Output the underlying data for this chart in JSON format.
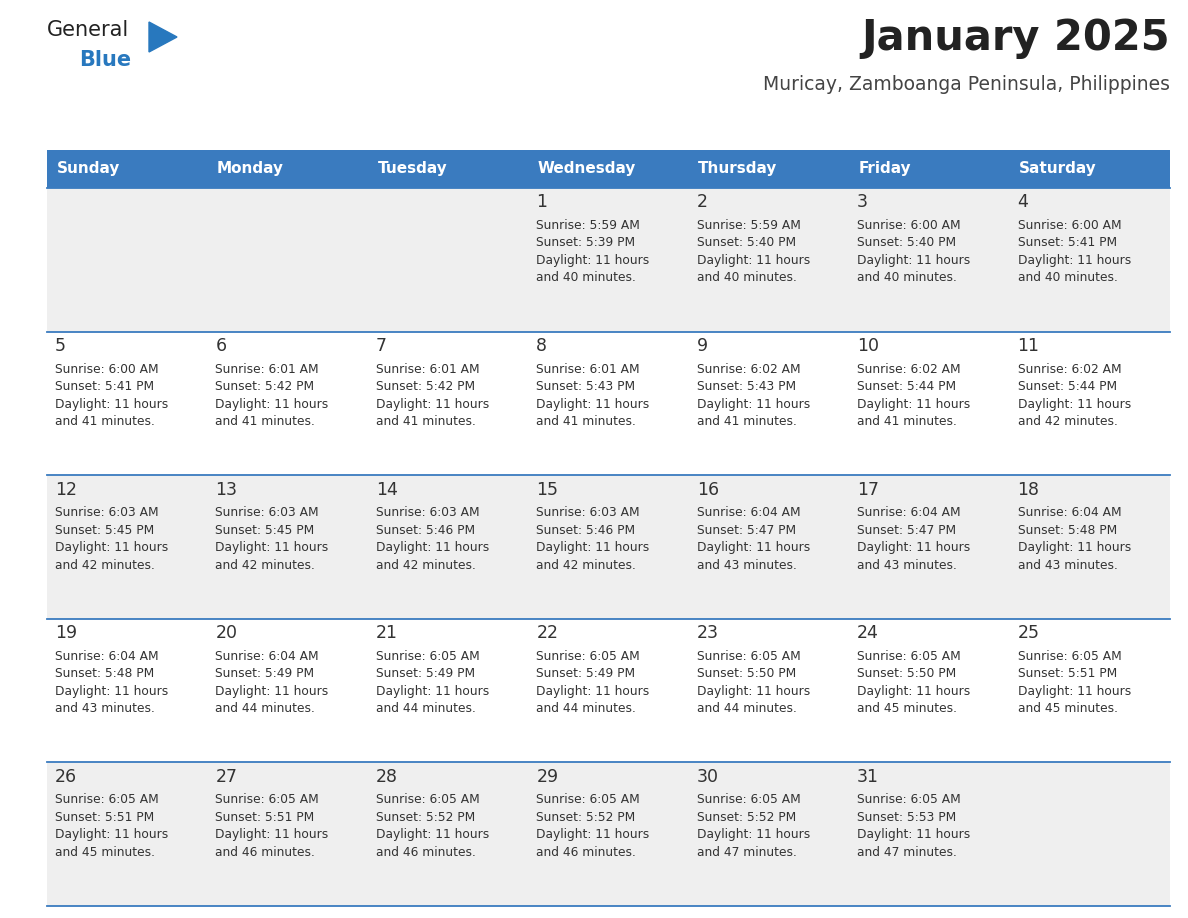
{
  "title": "January 2025",
  "subtitle": "Muricay, Zamboanga Peninsula, Philippines",
  "days_of_week": [
    "Sunday",
    "Monday",
    "Tuesday",
    "Wednesday",
    "Thursday",
    "Friday",
    "Saturday"
  ],
  "header_bg": "#3a7bbf",
  "header_text": "#ffffff",
  "row_bg_odd": "#efefef",
  "row_bg_even": "#ffffff",
  "cell_border": "#3a7bbf",
  "day_num_color": "#333333",
  "content_color": "#333333",
  "title_color": "#222222",
  "subtitle_color": "#444444",
  "logo_general_color": "#222222",
  "logo_blue_color": "#2878be",
  "calendar_data": [
    [
      null,
      null,
      null,
      {
        "day": "1",
        "sunrise": "5:59 AM",
        "sunset": "5:39 PM",
        "daylight_hours": "11 hours",
        "daylight_minutes": "and 40 minutes."
      },
      {
        "day": "2",
        "sunrise": "5:59 AM",
        "sunset": "5:40 PM",
        "daylight_hours": "11 hours",
        "daylight_minutes": "and 40 minutes."
      },
      {
        "day": "3",
        "sunrise": "6:00 AM",
        "sunset": "5:40 PM",
        "daylight_hours": "11 hours",
        "daylight_minutes": "and 40 minutes."
      },
      {
        "day": "4",
        "sunrise": "6:00 AM",
        "sunset": "5:41 PM",
        "daylight_hours": "11 hours",
        "daylight_minutes": "and 40 minutes."
      }
    ],
    [
      {
        "day": "5",
        "sunrise": "6:00 AM",
        "sunset": "5:41 PM",
        "daylight_hours": "11 hours",
        "daylight_minutes": "and 41 minutes."
      },
      {
        "day": "6",
        "sunrise": "6:01 AM",
        "sunset": "5:42 PM",
        "daylight_hours": "11 hours",
        "daylight_minutes": "and 41 minutes."
      },
      {
        "day": "7",
        "sunrise": "6:01 AM",
        "sunset": "5:42 PM",
        "daylight_hours": "11 hours",
        "daylight_minutes": "and 41 minutes."
      },
      {
        "day": "8",
        "sunrise": "6:01 AM",
        "sunset": "5:43 PM",
        "daylight_hours": "11 hours",
        "daylight_minutes": "and 41 minutes."
      },
      {
        "day": "9",
        "sunrise": "6:02 AM",
        "sunset": "5:43 PM",
        "daylight_hours": "11 hours",
        "daylight_minutes": "and 41 minutes."
      },
      {
        "day": "10",
        "sunrise": "6:02 AM",
        "sunset": "5:44 PM",
        "daylight_hours": "11 hours",
        "daylight_minutes": "and 41 minutes."
      },
      {
        "day": "11",
        "sunrise": "6:02 AM",
        "sunset": "5:44 PM",
        "daylight_hours": "11 hours",
        "daylight_minutes": "and 42 minutes."
      }
    ],
    [
      {
        "day": "12",
        "sunrise": "6:03 AM",
        "sunset": "5:45 PM",
        "daylight_hours": "11 hours",
        "daylight_minutes": "and 42 minutes."
      },
      {
        "day": "13",
        "sunrise": "6:03 AM",
        "sunset": "5:45 PM",
        "daylight_hours": "11 hours",
        "daylight_minutes": "and 42 minutes."
      },
      {
        "day": "14",
        "sunrise": "6:03 AM",
        "sunset": "5:46 PM",
        "daylight_hours": "11 hours",
        "daylight_minutes": "and 42 minutes."
      },
      {
        "day": "15",
        "sunrise": "6:03 AM",
        "sunset": "5:46 PM",
        "daylight_hours": "11 hours",
        "daylight_minutes": "and 42 minutes."
      },
      {
        "day": "16",
        "sunrise": "6:04 AM",
        "sunset": "5:47 PM",
        "daylight_hours": "11 hours",
        "daylight_minutes": "and 43 minutes."
      },
      {
        "day": "17",
        "sunrise": "6:04 AM",
        "sunset": "5:47 PM",
        "daylight_hours": "11 hours",
        "daylight_minutes": "and 43 minutes."
      },
      {
        "day": "18",
        "sunrise": "6:04 AM",
        "sunset": "5:48 PM",
        "daylight_hours": "11 hours",
        "daylight_minutes": "and 43 minutes."
      }
    ],
    [
      {
        "day": "19",
        "sunrise": "6:04 AM",
        "sunset": "5:48 PM",
        "daylight_hours": "11 hours",
        "daylight_minutes": "and 43 minutes."
      },
      {
        "day": "20",
        "sunrise": "6:04 AM",
        "sunset": "5:49 PM",
        "daylight_hours": "11 hours",
        "daylight_minutes": "and 44 minutes."
      },
      {
        "day": "21",
        "sunrise": "6:05 AM",
        "sunset": "5:49 PM",
        "daylight_hours": "11 hours",
        "daylight_minutes": "and 44 minutes."
      },
      {
        "day": "22",
        "sunrise": "6:05 AM",
        "sunset": "5:49 PM",
        "daylight_hours": "11 hours",
        "daylight_minutes": "and 44 minutes."
      },
      {
        "day": "23",
        "sunrise": "6:05 AM",
        "sunset": "5:50 PM",
        "daylight_hours": "11 hours",
        "daylight_minutes": "and 44 minutes."
      },
      {
        "day": "24",
        "sunrise": "6:05 AM",
        "sunset": "5:50 PM",
        "daylight_hours": "11 hours",
        "daylight_minutes": "and 45 minutes."
      },
      {
        "day": "25",
        "sunrise": "6:05 AM",
        "sunset": "5:51 PM",
        "daylight_hours": "11 hours",
        "daylight_minutes": "and 45 minutes."
      }
    ],
    [
      {
        "day": "26",
        "sunrise": "6:05 AM",
        "sunset": "5:51 PM",
        "daylight_hours": "11 hours",
        "daylight_minutes": "and 45 minutes."
      },
      {
        "day": "27",
        "sunrise": "6:05 AM",
        "sunset": "5:51 PM",
        "daylight_hours": "11 hours",
        "daylight_minutes": "and 46 minutes."
      },
      {
        "day": "28",
        "sunrise": "6:05 AM",
        "sunset": "5:52 PM",
        "daylight_hours": "11 hours",
        "daylight_minutes": "and 46 minutes."
      },
      {
        "day": "29",
        "sunrise": "6:05 AM",
        "sunset": "5:52 PM",
        "daylight_hours": "11 hours",
        "daylight_minutes": "and 46 minutes."
      },
      {
        "day": "30",
        "sunrise": "6:05 AM",
        "sunset": "5:52 PM",
        "daylight_hours": "11 hours",
        "daylight_minutes": "and 47 minutes."
      },
      {
        "day": "31",
        "sunrise": "6:05 AM",
        "sunset": "5:53 PM",
        "daylight_hours": "11 hours",
        "daylight_minutes": "and 47 minutes."
      },
      null
    ]
  ],
  "figsize": [
    11.88,
    9.18
  ],
  "dpi": 100
}
